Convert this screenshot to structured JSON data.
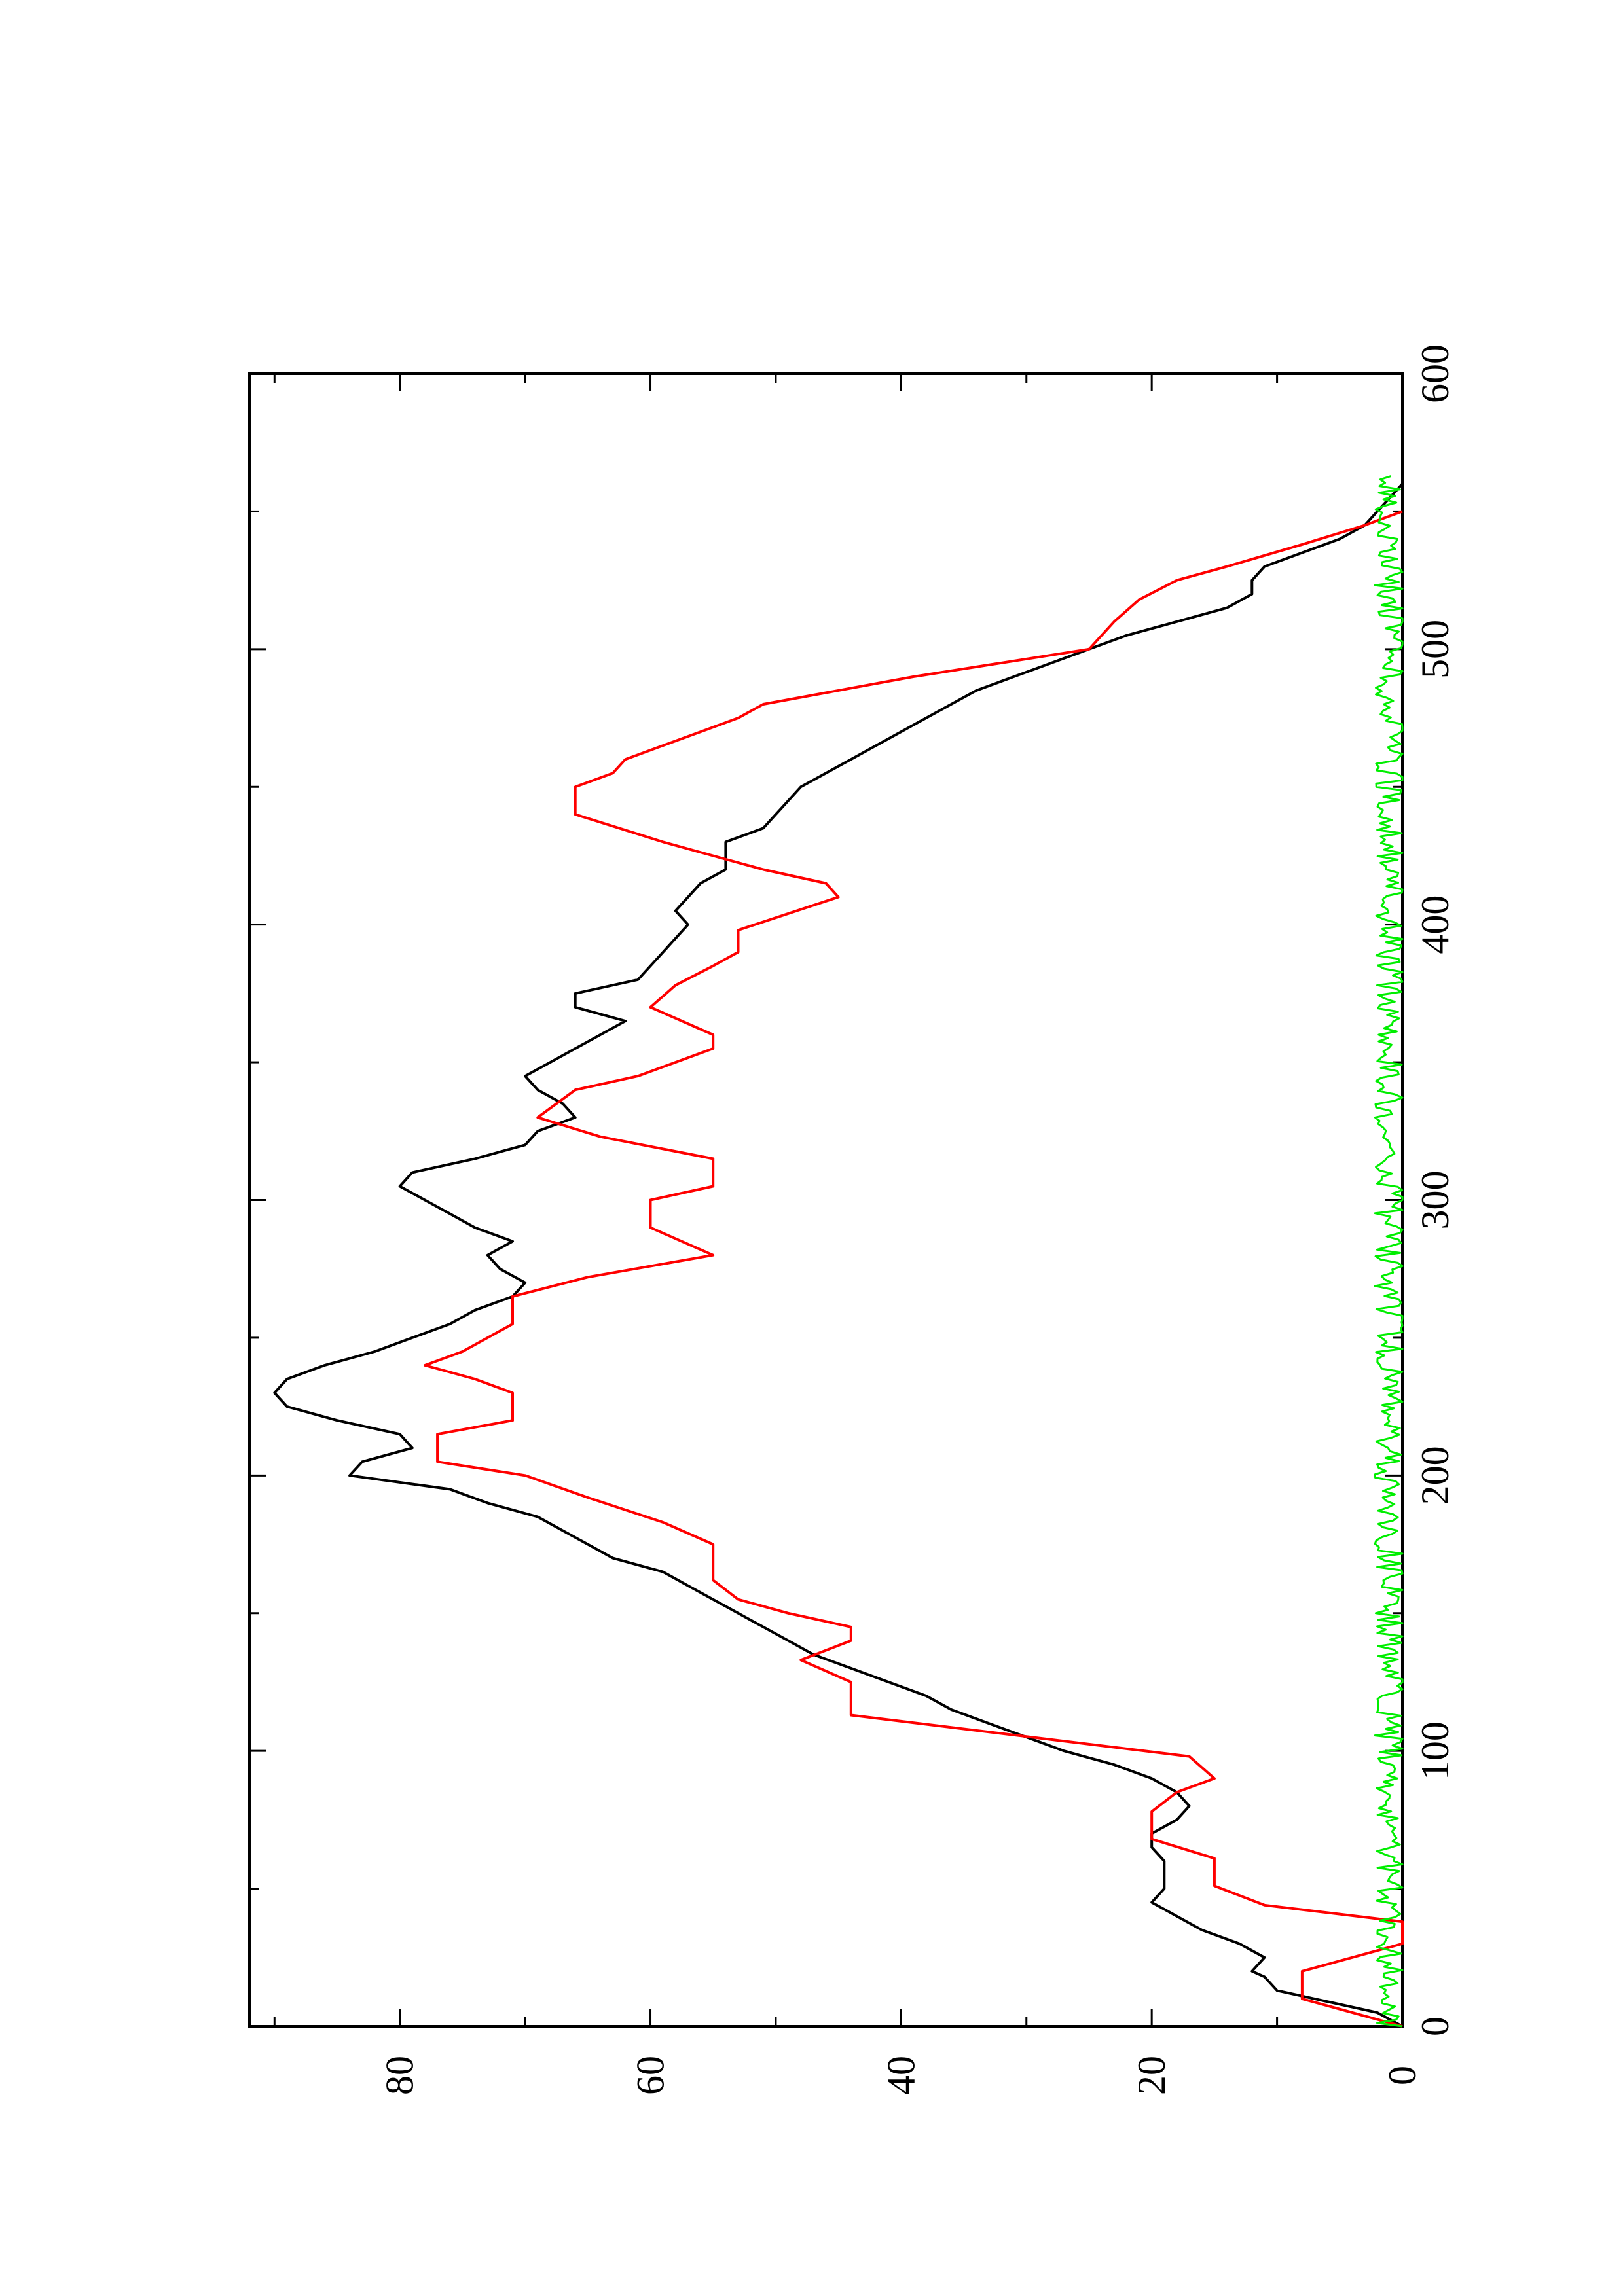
{
  "chart_data": {
    "type": "line",
    "orientation": "rotated-90-counterclockwise",
    "title": "",
    "xlabel": "",
    "ylabel": "",
    "xlim": [
      0,
      600
    ],
    "ylim": [
      0,
      92
    ],
    "x_ticks": [
      0,
      100,
      200,
      300,
      400,
      500,
      600
    ],
    "x_minor_ticks": [
      50,
      150,
      250,
      350,
      450,
      550
    ],
    "y_ticks": [
      0,
      20,
      40,
      60,
      80
    ],
    "y_minor_ticks": [
      10,
      30,
      50,
      70,
      90
    ],
    "x_tick_labels": [
      "0",
      "100",
      "200",
      "300",
      "400",
      "500",
      "600"
    ],
    "y_tick_labels": [
      "0",
      "20",
      "40",
      "60",
      "80"
    ],
    "grid": false,
    "legend": "none",
    "series": [
      {
        "color": "#000000",
        "style": "smooth-line",
        "points": [
          [
            0,
            0
          ],
          [
            5,
            2
          ],
          [
            10,
            7
          ],
          [
            13,
            10
          ],
          [
            18,
            11
          ],
          [
            20,
            12
          ],
          [
            25,
            11
          ],
          [
            30,
            13
          ],
          [
            35,
            16
          ],
          [
            40,
            18
          ],
          [
            45,
            20
          ],
          [
            50,
            19
          ],
          [
            55,
            19
          ],
          [
            60,
            19
          ],
          [
            65,
            20
          ],
          [
            70,
            20
          ],
          [
            75,
            18
          ],
          [
            80,
            17
          ],
          [
            85,
            18
          ],
          [
            90,
            20
          ],
          [
            95,
            23
          ],
          [
            100,
            27
          ],
          [
            105,
            30
          ],
          [
            110,
            33
          ],
          [
            115,
            36
          ],
          [
            120,
            38
          ],
          [
            125,
            41
          ],
          [
            130,
            44
          ],
          [
            135,
            47
          ],
          [
            140,
            49
          ],
          [
            145,
            51
          ],
          [
            150,
            53
          ],
          [
            155,
            55
          ],
          [
            160,
            57
          ],
          [
            165,
            59
          ],
          [
            170,
            63
          ],
          [
            175,
            65
          ],
          [
            180,
            67
          ],
          [
            185,
            69
          ],
          [
            190,
            73
          ],
          [
            195,
            76
          ],
          [
            200,
            84
          ],
          [
            205,
            83
          ],
          [
            210,
            79
          ],
          [
            215,
            80
          ],
          [
            220,
            85
          ],
          [
            225,
            89
          ],
          [
            230,
            90
          ],
          [
            235,
            89
          ],
          [
            240,
            86
          ],
          [
            245,
            82
          ],
          [
            250,
            79
          ],
          [
            255,
            76
          ],
          [
            260,
            74
          ],
          [
            265,
            71
          ],
          [
            270,
            70
          ],
          [
            275,
            72
          ],
          [
            280,
            73
          ],
          [
            285,
            71
          ],
          [
            290,
            74
          ],
          [
            295,
            76
          ],
          [
            300,
            78
          ],
          [
            305,
            80
          ],
          [
            310,
            79
          ],
          [
            315,
            74
          ],
          [
            320,
            70
          ],
          [
            325,
            69
          ],
          [
            330,
            66
          ],
          [
            335,
            67
          ],
          [
            340,
            69
          ],
          [
            345,
            70
          ],
          [
            350,
            68
          ],
          [
            355,
            66
          ],
          [
            360,
            64
          ],
          [
            365,
            62
          ],
          [
            370,
            66
          ],
          [
            375,
            66
          ],
          [
            380,
            61
          ],
          [
            385,
            60
          ],
          [
            390,
            59
          ],
          [
            395,
            58
          ],
          [
            400,
            57
          ],
          [
            405,
            58
          ],
          [
            410,
            57
          ],
          [
            415,
            56
          ],
          [
            420,
            54
          ],
          [
            425,
            54
          ],
          [
            430,
            54
          ],
          [
            435,
            51
          ],
          [
            440,
            50
          ],
          [
            445,
            49
          ],
          [
            450,
            48
          ],
          [
            455,
            46
          ],
          [
            460,
            44
          ],
          [
            465,
            42
          ],
          [
            470,
            40
          ],
          [
            475,
            38
          ],
          [
            480,
            36
          ],
          [
            485,
            34
          ],
          [
            490,
            31
          ],
          [
            495,
            28
          ],
          [
            500,
            25
          ],
          [
            505,
            22
          ],
          [
            510,
            18
          ],
          [
            515,
            14
          ],
          [
            520,
            12
          ],
          [
            525,
            12
          ],
          [
            530,
            11
          ],
          [
            535,
            8
          ],
          [
            540,
            5
          ],
          [
            545,
            3
          ],
          [
            550,
            2
          ],
          [
            555,
            1
          ],
          [
            560,
            0
          ]
        ]
      },
      {
        "color": "#ff0000",
        "style": "stepped-line",
        "points": [
          [
            0,
            0
          ],
          [
            10,
            8
          ],
          [
            20,
            8
          ],
          [
            30,
            0
          ],
          [
            38,
            0
          ],
          [
            44,
            11
          ],
          [
            51,
            15
          ],
          [
            61,
            15
          ],
          [
            68,
            20
          ],
          [
            78,
            20
          ],
          [
            85,
            18
          ],
          [
            90,
            15
          ],
          [
            98,
            17
          ],
          [
            113,
            44
          ],
          [
            120,
            44
          ],
          [
            125,
            44
          ],
          [
            133,
            48
          ],
          [
            140,
            44
          ],
          [
            145,
            44
          ],
          [
            150,
            49
          ],
          [
            155,
            53
          ],
          [
            162,
            55
          ],
          [
            175,
            55
          ],
          [
            183,
            59
          ],
          [
            192,
            65
          ],
          [
            200,
            70
          ],
          [
            205,
            77
          ],
          [
            215,
            77
          ],
          [
            220,
            71
          ],
          [
            230,
            71
          ],
          [
            235,
            74
          ],
          [
            240,
            78
          ],
          [
            245,
            75
          ],
          [
            255,
            71
          ],
          [
            265,
            71
          ],
          [
            272,
            65
          ],
          [
            280,
            55
          ],
          [
            290,
            60
          ],
          [
            300,
            60
          ],
          [
            305,
            55
          ],
          [
            315,
            55
          ],
          [
            323,
            64
          ],
          [
            330,
            69
          ],
          [
            340,
            66
          ],
          [
            345,
            61
          ],
          [
            355,
            55
          ],
          [
            360,
            55
          ],
          [
            370,
            60
          ],
          [
            378,
            58
          ],
          [
            385,
            55
          ],
          [
            390,
            53
          ],
          [
            398,
            53
          ],
          [
            410,
            45
          ],
          [
            415,
            46
          ],
          [
            420,
            51
          ],
          [
            425,
            55
          ],
          [
            430,
            59
          ],
          [
            440,
            66
          ],
          [
            450,
            66
          ],
          [
            455,
            63
          ],
          [
            460,
            62
          ],
          [
            465,
            59
          ],
          [
            470,
            56
          ],
          [
            475,
            53
          ],
          [
            480,
            51
          ],
          [
            490,
            39
          ],
          [
            500,
            25
          ],
          [
            510,
            23
          ],
          [
            518,
            21
          ],
          [
            525,
            18
          ],
          [
            530,
            14
          ],
          [
            538,
            8
          ],
          [
            545,
            3
          ],
          [
            550,
            0
          ]
        ]
      },
      {
        "color": "#00ee00",
        "style": "noisy-line",
        "baseline": 1.0,
        "amplitude": 1.2,
        "x_range": [
          0,
          563
        ]
      }
    ]
  }
}
